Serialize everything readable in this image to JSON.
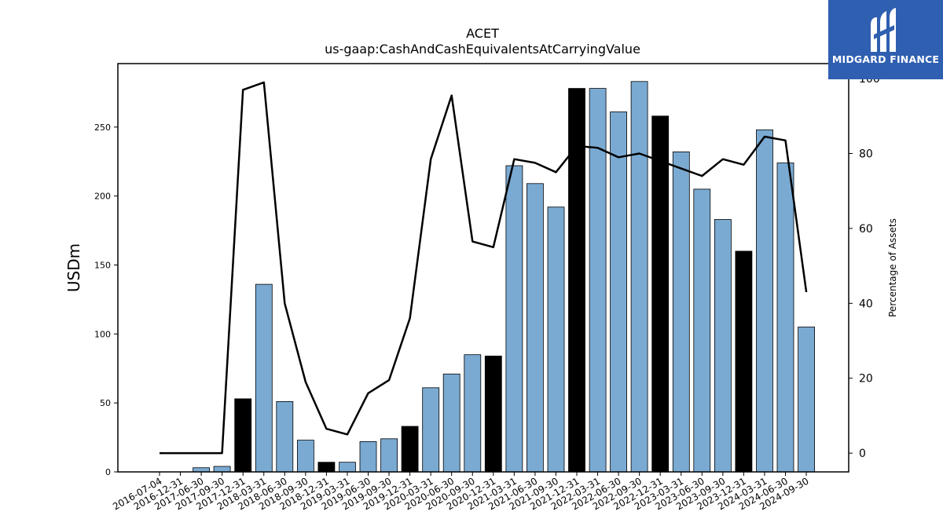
{
  "chart_data": {
    "type": "bar",
    "title": "ACET",
    "subtitle": "us-gaap:CashAndCashEquivalentsAtCarryingValue",
    "ylabel": "USDm",
    "y2label": "Percentage of Assets",
    "ylim": [
      0,
      296
    ],
    "y2lim": [
      -5,
      104
    ],
    "yticks": [
      0,
      50,
      100,
      150,
      200,
      250
    ],
    "y2ticks": [
      0,
      20,
      40,
      60,
      80,
      100
    ],
    "categories": [
      "2016-07-04",
      "2016-12-31",
      "2017-06-30",
      "2017-09-30",
      "2017-12-31",
      "2018-03-31",
      "2018-06-30",
      "2018-09-30",
      "2018-12-31",
      "2019-03-31",
      "2019-06-30",
      "2019-09-30",
      "2019-12-31",
      "2020-03-31",
      "2020-06-30",
      "2020-09-30",
      "2020-12-31",
      "2021-03-31",
      "2021-06-30",
      "2021-09-30",
      "2021-12-31",
      "2022-03-31",
      "2022-06-30",
      "2022-09-30",
      "2022-12-31",
      "2023-03-31",
      "2023-06-30",
      "2023-09-30",
      "2023-12-31",
      "2024-03-31",
      "2024-06-30",
      "2024-09-30"
    ],
    "series": [
      {
        "type": "bar",
        "values": [
          0,
          0,
          3,
          4,
          53,
          136,
          51,
          23,
          7,
          7,
          22,
          24,
          33,
          61,
          71,
          85,
          84,
          222,
          209,
          192,
          278,
          278,
          261,
          283,
          258,
          232,
          205,
          183,
          160,
          248,
          224,
          105
        ]
      },
      {
        "type": "line",
        "axis": "right",
        "values": [
          0,
          0,
          0,
          0,
          97,
          99,
          40,
          19,
          6.5,
          5,
          16,
          19.5,
          36,
          78.5,
          95.5,
          56.5,
          55,
          78.5,
          77.5,
          75,
          82,
          81.5,
          79,
          80,
          78,
          76,
          74,
          78.5,
          77,
          84.5,
          83.5,
          43
        ]
      }
    ],
    "highlighted_bars": [
      "2017-12-31",
      "2018-12-31",
      "2019-12-31",
      "2020-12-31",
      "2021-12-31",
      "2022-12-31",
      "2023-12-31"
    ],
    "colors": {
      "bar": "#7aaad2",
      "highlight_bar": "#000000",
      "line": "#000000"
    },
    "grid": false,
    "legend": "none"
  },
  "logo": {
    "text": "MIDGARD FINANCE",
    "icon": "midgard-logo-icon",
    "color": "#2f5fb0"
  }
}
